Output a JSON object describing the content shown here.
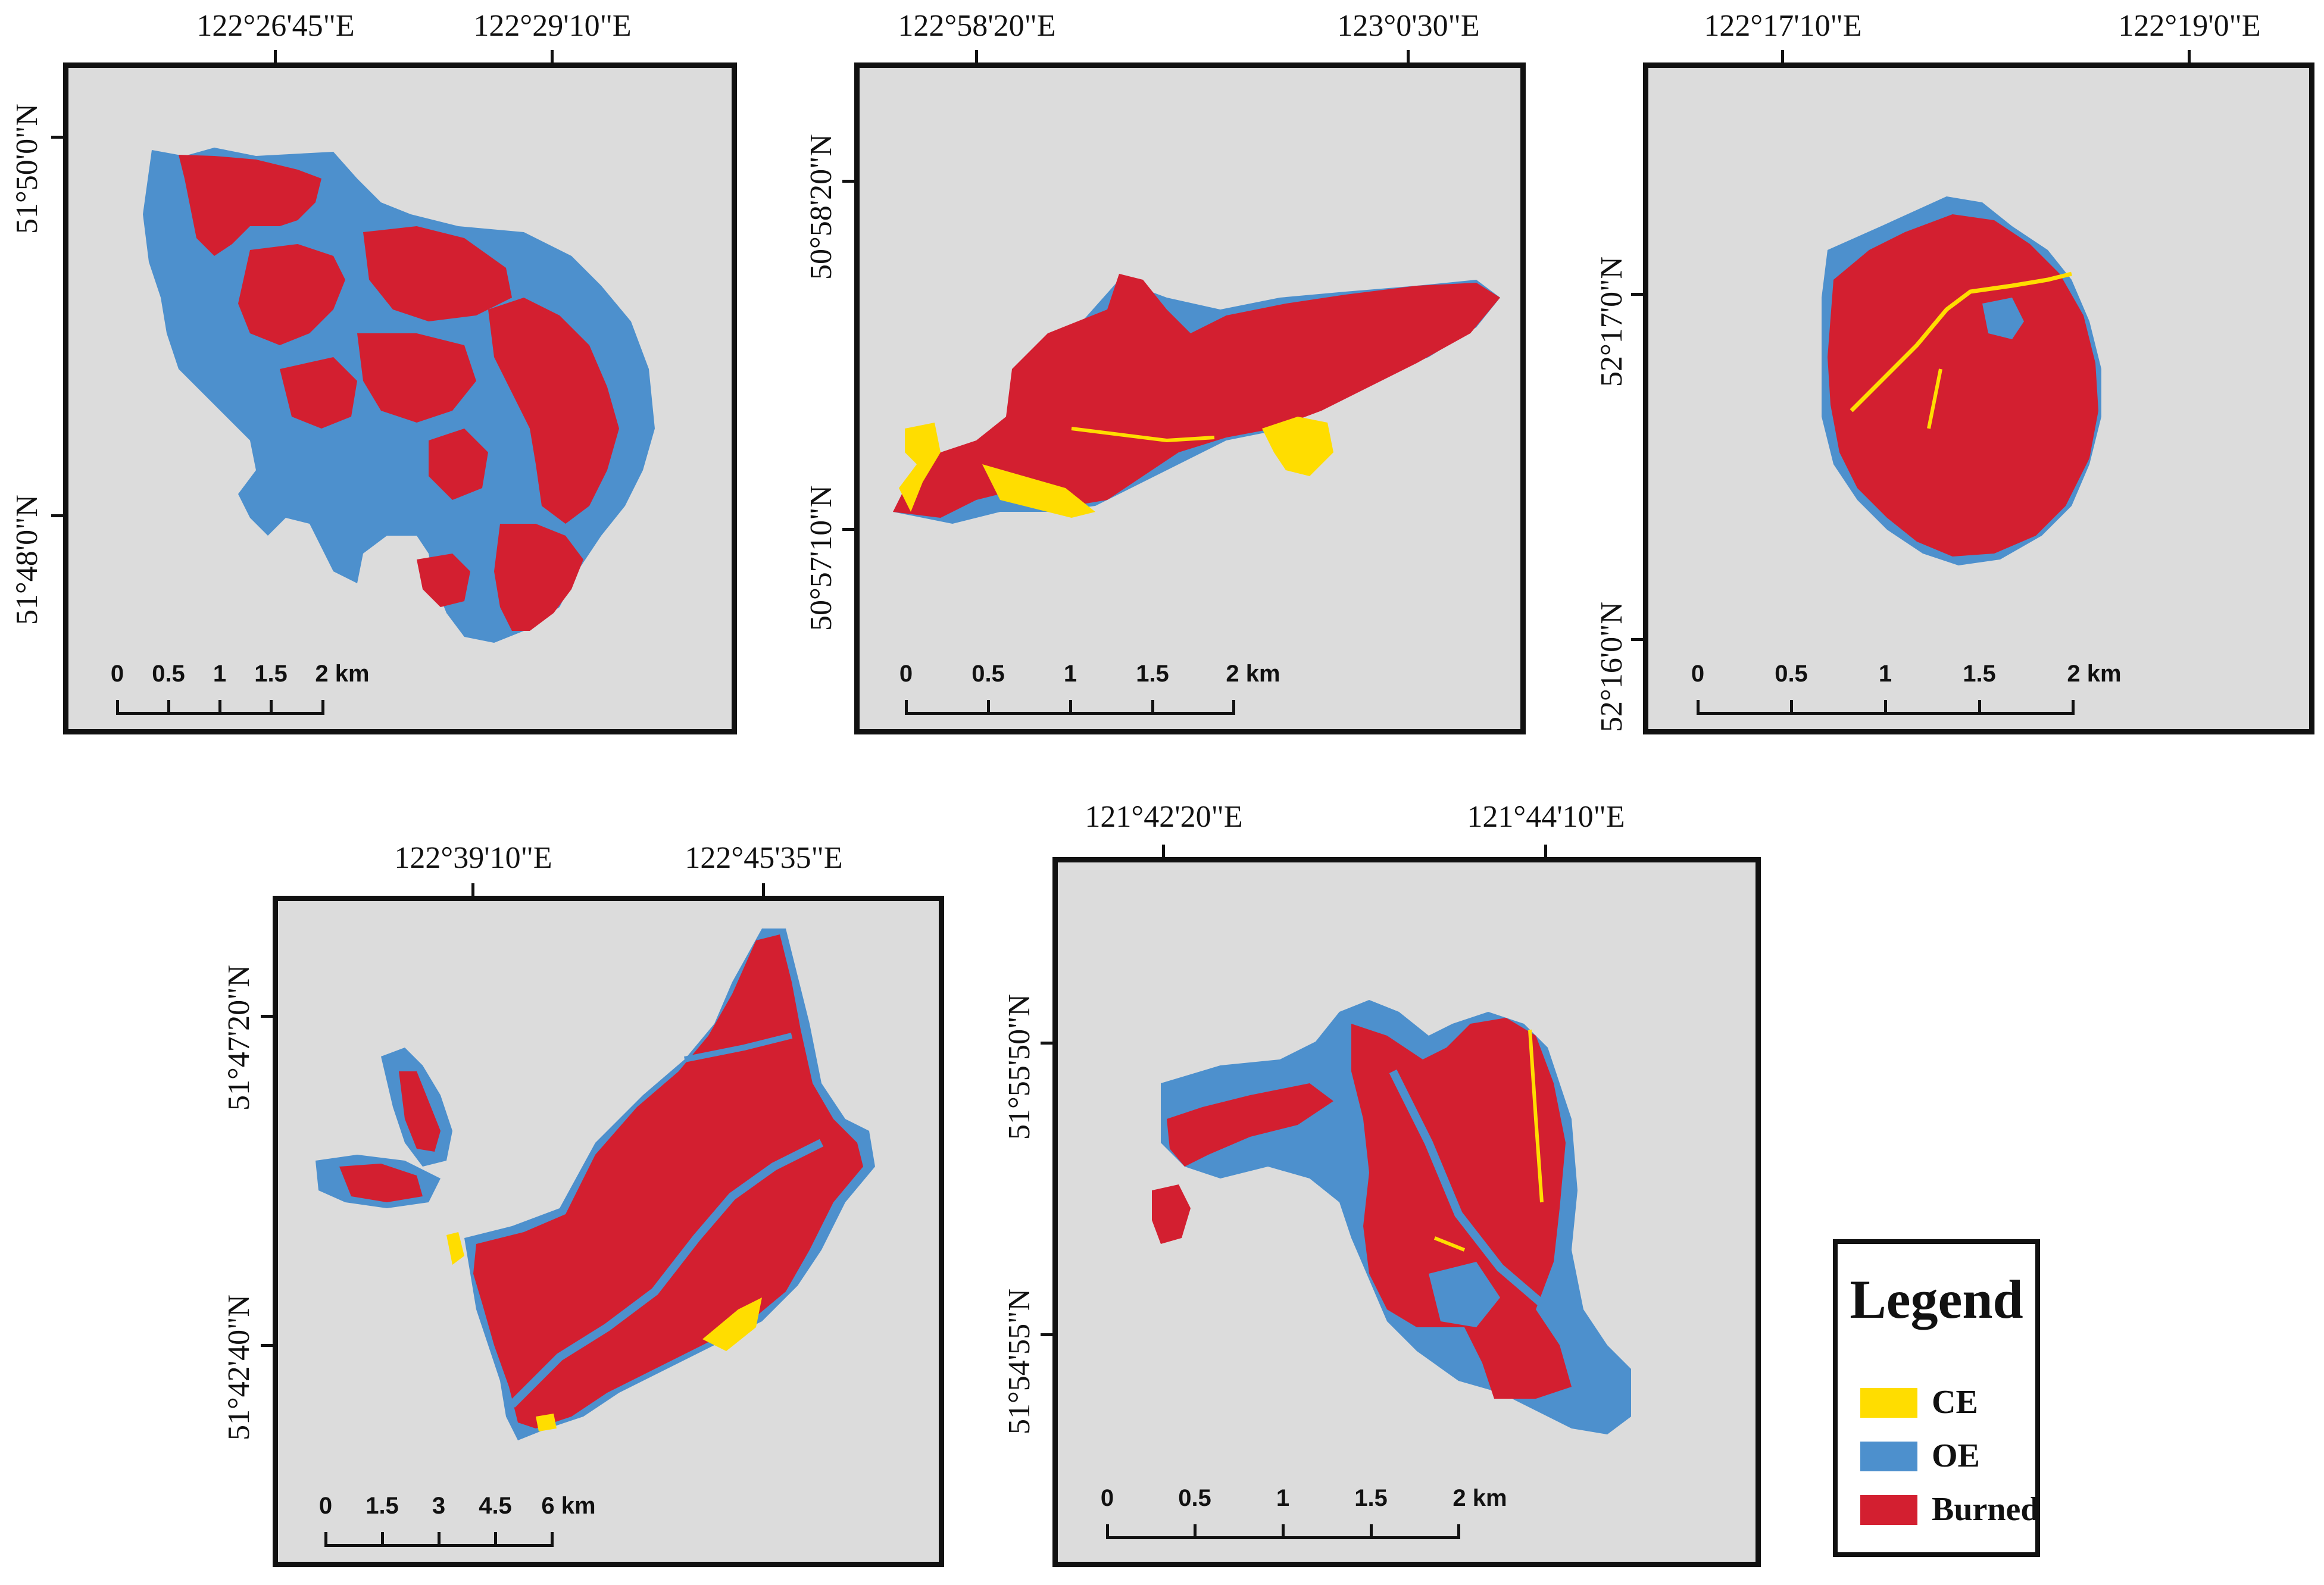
{
  "colors": {
    "background": "#dcdcdc",
    "burned": "#d31f30",
    "oe": "#4d90cd",
    "ce": "#ffdd00"
  },
  "panels": [
    {
      "x_labels": [
        "122°26'45\"E",
        "122°29'10\"E"
      ],
      "y_labels": [
        "51°50'0\"N",
        "51°48'0\"N"
      ],
      "scale_labels": [
        "0",
        "0.5",
        "1",
        "1.5",
        "2 km"
      ]
    },
    {
      "x_labels": [
        "122°58'20\"E",
        "123°0'30\"E"
      ],
      "y_labels": [
        "50°58'20\"N",
        "50°57'10\"N"
      ],
      "scale_labels": [
        "0",
        "0.5",
        "1",
        "1.5",
        "2 km"
      ]
    },
    {
      "x_labels": [
        "122°17'10\"E",
        "122°19'0\"E"
      ],
      "y_labels": [
        "52°17'0\"N",
        "52°16'0\"N"
      ],
      "scale_labels": [
        "0",
        "0.5",
        "1",
        "1.5",
        "2 km"
      ]
    },
    {
      "x_labels": [
        "122°39'10\"E",
        "122°45'35\"E"
      ],
      "y_labels": [
        "51°47'20\"N",
        "51°42'40\"N"
      ],
      "scale_labels": [
        "0",
        "1.5",
        "3",
        "4.5",
        "6 km"
      ]
    },
    {
      "x_labels": [
        "121°42'20\"E",
        "121°44'10\"E"
      ],
      "y_labels": [
        "51°55'50\"N",
        "51°54'55\"N"
      ],
      "scale_labels": [
        "0",
        "0.5",
        "1",
        "1.5",
        "2 km"
      ]
    }
  ],
  "legend": {
    "title": "Legend",
    "items": [
      {
        "label": "CE",
        "color": "#ffdd00"
      },
      {
        "label": "OE",
        "color": "#4d90cd"
      },
      {
        "label": "Burned",
        "color": "#d31f30"
      }
    ]
  }
}
